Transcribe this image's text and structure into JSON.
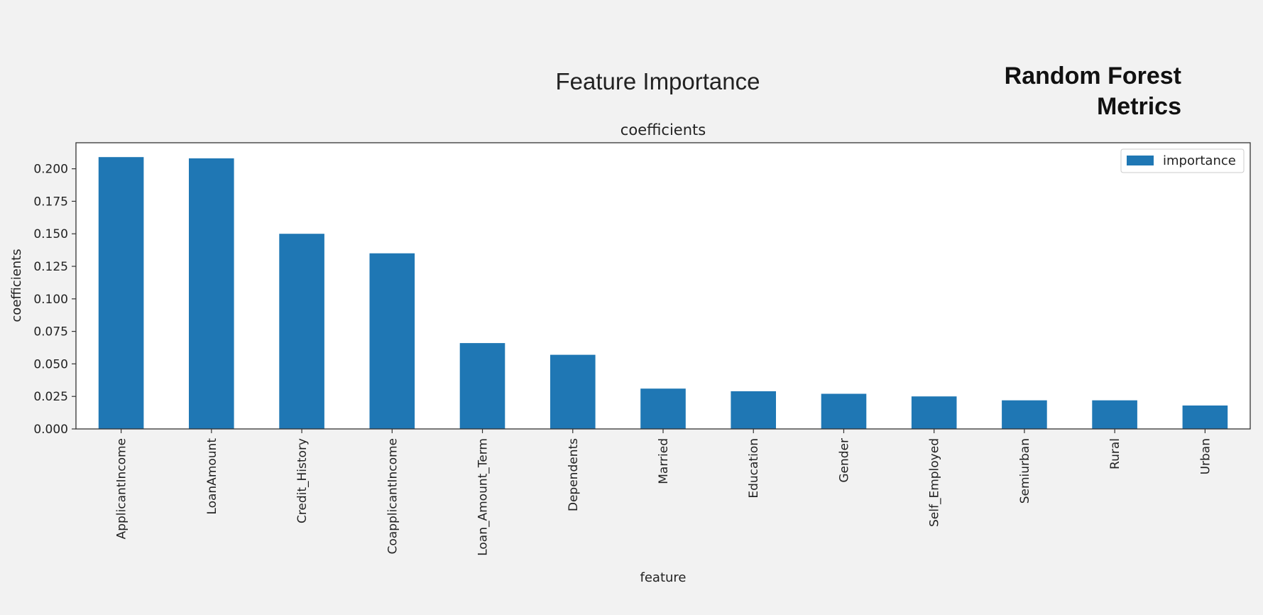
{
  "page": {
    "heading": "Feature Importance",
    "side_title_line1": "Random Forest",
    "side_title_line2": "Metrics"
  },
  "chart_data": {
    "type": "bar",
    "title": "coefficients",
    "xlabel": "feature",
    "ylabel": "coefficients",
    "categories": [
      "ApplicantIncome",
      "LoanAmount",
      "Credit_History",
      "CoapplicantIncome",
      "Loan_Amount_Term",
      "Dependents",
      "Married",
      "Education",
      "Gender",
      "Self_Employed",
      "Semiurban",
      "Rural",
      "Urban"
    ],
    "series": [
      {
        "name": "importance",
        "values": [
          0.209,
          0.208,
          0.15,
          0.135,
          0.066,
          0.057,
          0.031,
          0.029,
          0.027,
          0.025,
          0.022,
          0.022,
          0.018
        ],
        "color": "#1f77b4"
      }
    ],
    "ylim": [
      0,
      0.22
    ],
    "yticks": [
      "0.000",
      "0.025",
      "0.050",
      "0.075",
      "0.100",
      "0.125",
      "0.150",
      "0.175",
      "0.200"
    ],
    "grid": false,
    "legend_position": "top-right"
  }
}
